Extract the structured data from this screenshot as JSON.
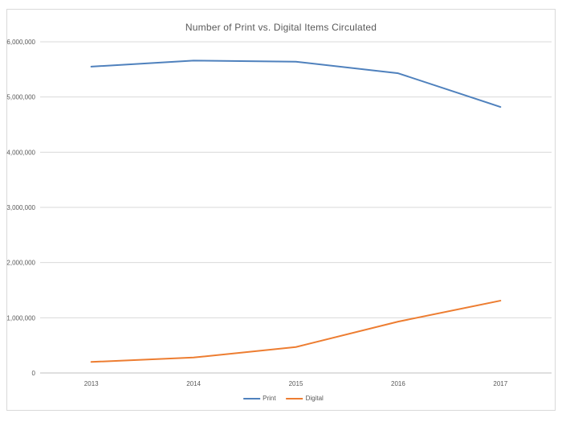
{
  "chart_data": {
    "type": "line",
    "title": "Number of Print vs. Digital Items Circulated",
    "categories": [
      "2013",
      "2014",
      "2015",
      "2016",
      "2017"
    ],
    "series": [
      {
        "name": "Print",
        "color": "#4f81bd",
        "values": [
          5550000,
          5660000,
          5640000,
          5430000,
          4820000
        ]
      },
      {
        "name": "Digital",
        "color": "#ed7d31",
        "values": [
          200000,
          280000,
          470000,
          930000,
          1310000
        ]
      }
    ],
    "xlabel": "",
    "ylabel": "",
    "ylim": [
      0,
      6000000
    ],
    "ytick_values": [
      0,
      1000000,
      2000000,
      3000000,
      4000000,
      5000000,
      6000000
    ],
    "ytick_labels": [
      "0",
      "1,000,000",
      "2,000,000",
      "3,000,000",
      "4,000,000",
      "5,000,000",
      "6,000,000"
    ],
    "grid": true,
    "legend_position": "bottom-center",
    "colors": {
      "gridline": "#d9d9d9",
      "axis_line": "#bfbfbf",
      "tick_text": "#595959",
      "title_text": "#595959",
      "frame_border": "#d9d9d9",
      "background": "#ffffff"
    }
  }
}
